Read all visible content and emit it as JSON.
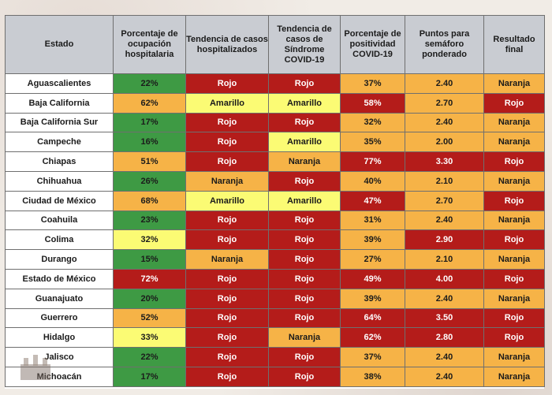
{
  "headers": [
    "Estado",
    "Porcentaje de ocupación hospitalaria",
    "Tendencia de casos hospitalizados",
    "Tendencia de casos de Síndrome COVID-19",
    "Porcentaje de positividad COVID-19",
    "Puntos para semáforo ponderado",
    "Resultado final"
  ],
  "colors": {
    "verde": "#3e9a44",
    "amarillo": "#fbfb74",
    "naranja": "#f6b347",
    "rojo": "#b41c1a"
  },
  "rows": [
    {
      "estado": "Aguascalientes",
      "ocup": "22%",
      "ocup_c": "g",
      "hosp": "Rojo",
      "hosp_c": "r",
      "sind": "Rojo",
      "sind_c": "r",
      "pos": "37%",
      "pos_c": "o",
      "pts": "2.40",
      "pts_c": "o",
      "res": "Naranja",
      "res_c": "o"
    },
    {
      "estado": "Baja California",
      "ocup": "62%",
      "ocup_c": "o",
      "hosp": "Amarillo",
      "hosp_c": "y",
      "sind": "Amarillo",
      "sind_c": "y",
      "pos": "58%",
      "pos_c": "r",
      "pts": "2.70",
      "pts_c": "o",
      "res": "Rojo",
      "res_c": "r"
    },
    {
      "estado": "Baja California Sur",
      "ocup": "17%",
      "ocup_c": "g",
      "hosp": "Rojo",
      "hosp_c": "r",
      "sind": "Rojo",
      "sind_c": "r",
      "pos": "32%",
      "pos_c": "o",
      "pts": "2.40",
      "pts_c": "o",
      "res": "Naranja",
      "res_c": "o"
    },
    {
      "estado": "Campeche",
      "ocup": "16%",
      "ocup_c": "g",
      "hosp": "Rojo",
      "hosp_c": "r",
      "sind": "Amarillo",
      "sind_c": "y",
      "pos": "35%",
      "pos_c": "o",
      "pts": "2.00",
      "pts_c": "o",
      "res": "Naranja",
      "res_c": "o"
    },
    {
      "estado": "Chiapas",
      "ocup": "51%",
      "ocup_c": "o",
      "hosp": "Rojo",
      "hosp_c": "r",
      "sind": "Naranja",
      "sind_c": "o",
      "pos": "77%",
      "pos_c": "r",
      "pts": "3.30",
      "pts_c": "r",
      "res": "Rojo",
      "res_c": "r"
    },
    {
      "estado": "Chihuahua",
      "ocup": "26%",
      "ocup_c": "g",
      "hosp": "Naranja",
      "hosp_c": "o",
      "sind": "Rojo",
      "sind_c": "r",
      "pos": "40%",
      "pos_c": "o",
      "pts": "2.10",
      "pts_c": "o",
      "res": "Naranja",
      "res_c": "o"
    },
    {
      "estado": "Ciudad de México",
      "ocup": "68%",
      "ocup_c": "o",
      "hosp": "Amarillo",
      "hosp_c": "y",
      "sind": "Amarillo",
      "sind_c": "y",
      "pos": "47%",
      "pos_c": "r",
      "pts": "2.70",
      "pts_c": "o",
      "res": "Rojo",
      "res_c": "r"
    },
    {
      "estado": "Coahuila",
      "ocup": "23%",
      "ocup_c": "g",
      "hosp": "Rojo",
      "hosp_c": "r",
      "sind": "Rojo",
      "sind_c": "r",
      "pos": "31%",
      "pos_c": "o",
      "pts": "2.40",
      "pts_c": "o",
      "res": "Naranja",
      "res_c": "o"
    },
    {
      "estado": "Colima",
      "ocup": "32%",
      "ocup_c": "y",
      "hosp": "Rojo",
      "hosp_c": "r",
      "sind": "Rojo",
      "sind_c": "r",
      "pos": "39%",
      "pos_c": "o",
      "pts": "2.90",
      "pts_c": "r",
      "res": "Rojo",
      "res_c": "r"
    },
    {
      "estado": "Durango",
      "ocup": "15%",
      "ocup_c": "g",
      "hosp": "Naranja",
      "hosp_c": "o",
      "sind": "Rojo",
      "sind_c": "r",
      "pos": "27%",
      "pos_c": "o",
      "pts": "2.10",
      "pts_c": "o",
      "res": "Naranja",
      "res_c": "o"
    },
    {
      "estado": "Estado de México",
      "ocup": "72%",
      "ocup_c": "r",
      "hosp": "Rojo",
      "hosp_c": "r",
      "sind": "Rojo",
      "sind_c": "r",
      "pos": "49%",
      "pos_c": "r",
      "pts": "4.00",
      "pts_c": "r",
      "res": "Rojo",
      "res_c": "r"
    },
    {
      "estado": "Guanajuato",
      "ocup": "20%",
      "ocup_c": "g",
      "hosp": "Rojo",
      "hosp_c": "r",
      "sind": "Rojo",
      "sind_c": "r",
      "pos": "39%",
      "pos_c": "o",
      "pts": "2.40",
      "pts_c": "o",
      "res": "Naranja",
      "res_c": "o"
    },
    {
      "estado": "Guerrero",
      "ocup": "52%",
      "ocup_c": "o",
      "hosp": "Rojo",
      "hosp_c": "r",
      "sind": "Rojo",
      "sind_c": "r",
      "pos": "64%",
      "pos_c": "r",
      "pts": "3.50",
      "pts_c": "r",
      "res": "Rojo",
      "res_c": "r"
    },
    {
      "estado": "Hidalgo",
      "ocup": "33%",
      "ocup_c": "y",
      "hosp": "Rojo",
      "hosp_c": "r",
      "sind": "Naranja",
      "sind_c": "o",
      "pos": "62%",
      "pos_c": "r",
      "pts": "2.80",
      "pts_c": "r",
      "res": "Rojo",
      "res_c": "r"
    },
    {
      "estado": "Jalisco",
      "ocup": "22%",
      "ocup_c": "g",
      "hosp": "Rojo",
      "hosp_c": "r",
      "sind": "Rojo",
      "sind_c": "r",
      "pos": "37%",
      "pos_c": "o",
      "pts": "2.40",
      "pts_c": "o",
      "res": "Naranja",
      "res_c": "o"
    },
    {
      "estado": "Michoacán",
      "ocup": "17%",
      "ocup_c": "g",
      "hosp": "Rojo",
      "hosp_c": "r",
      "sind": "Rojo",
      "sind_c": "r",
      "pos": "38%",
      "pos_c": "o",
      "pts": "2.40",
      "pts_c": "o",
      "res": "Naranja",
      "res_c": "o"
    }
  ]
}
